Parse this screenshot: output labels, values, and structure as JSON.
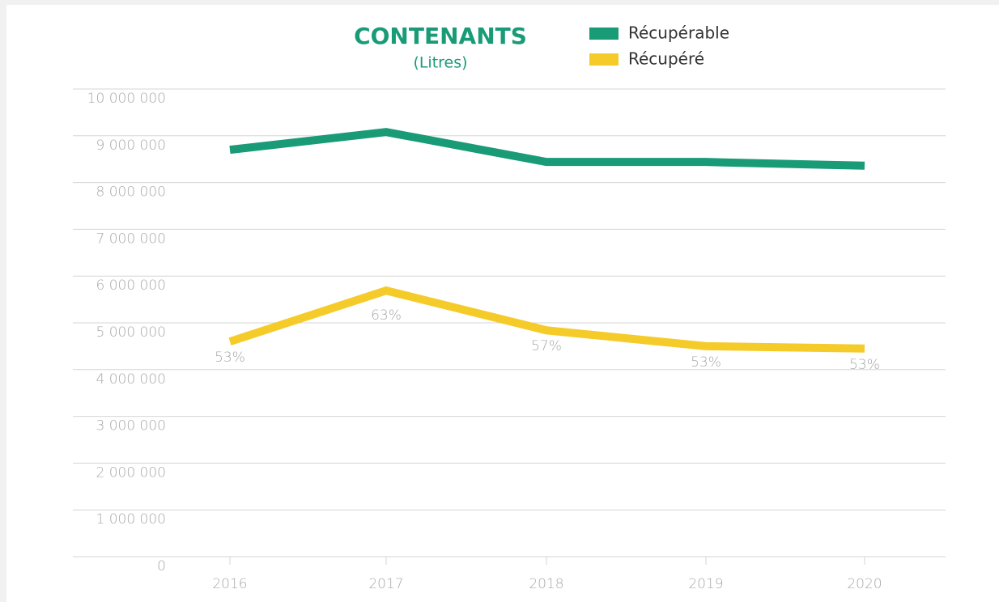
{
  "chart_data": {
    "type": "line",
    "title": "CONTENANTS",
    "subtitle": "(Litres)",
    "categories": [
      "2016",
      "2017",
      "2018",
      "2019",
      "2020"
    ],
    "series": [
      {
        "name": "Récupérable",
        "color": "#1a9b77",
        "values": [
          8700000,
          9080000,
          8440000,
          8440000,
          8360000
        ]
      },
      {
        "name": "Récupéré",
        "color": "#f5cb2a",
        "values": [
          4600000,
          5690000,
          4840000,
          4500000,
          4450000
        ],
        "point_labels": [
          "53%",
          "63%",
          "57%",
          "53%",
          "53%"
        ]
      }
    ],
    "ylim": [
      0,
      10000000
    ],
    "yticks": [
      0,
      {
        "value": 1000000,
        "label": "1 000 000"
      },
      {
        "value": 2000000,
        "label": "2 000 000"
      },
      {
        "value": 3000000,
        "label": "3 000 000"
      },
      {
        "value": 4000000,
        "label": "4 000 000"
      },
      {
        "value": 5000000,
        "label": "5 000 000"
      },
      {
        "value": 6000000,
        "label": "6 000 000"
      },
      {
        "value": 7000000,
        "label": "7 000 000"
      },
      {
        "value": 8000000,
        "label": "8 000 000"
      },
      {
        "value": 9000000,
        "label": "9 000 000"
      },
      {
        "value": 10000000,
        "label": "10 000 000"
      }
    ],
    "grid": true,
    "legend": "top"
  }
}
